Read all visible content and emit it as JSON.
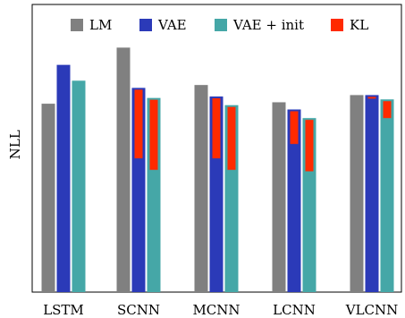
{
  "chart_data": {
    "type": "bar",
    "ylabel": "NLL",
    "xlabel": "",
    "title": "",
    "categories": [
      "LSTM",
      "SCNN",
      "MCNN",
      "LCNN",
      "VLCNN"
    ],
    "ylim": [
      0,
      100
    ],
    "y_ticks_shown": false,
    "grid": false,
    "legend_position": "top",
    "series": [
      {
        "name": "LM",
        "color": "#808080",
        "values": [
          65.5,
          85.0,
          72.0,
          66.0,
          68.5
        ]
      },
      {
        "name": "VAE",
        "color": "#2b3ab8",
        "values": [
          79.0,
          71.0,
          68.0,
          63.5,
          68.5
        ]
      },
      {
        "name": "VAE + init",
        "color": "#45a7a7",
        "values": [
          73.5,
          67.5,
          65.0,
          60.5,
          67.0
        ]
      }
    ],
    "kl": {
      "name": "KL",
      "color": "#ff2a00",
      "note": "KL term shown as red segment at top of VAE and VAE + init bars",
      "vae_values": [
        0,
        24.5,
        21.5,
        12.0,
        1.0
      ],
      "vae_init_values": [
        0,
        25.0,
        22.5,
        18.5,
        6.5
      ]
    }
  }
}
